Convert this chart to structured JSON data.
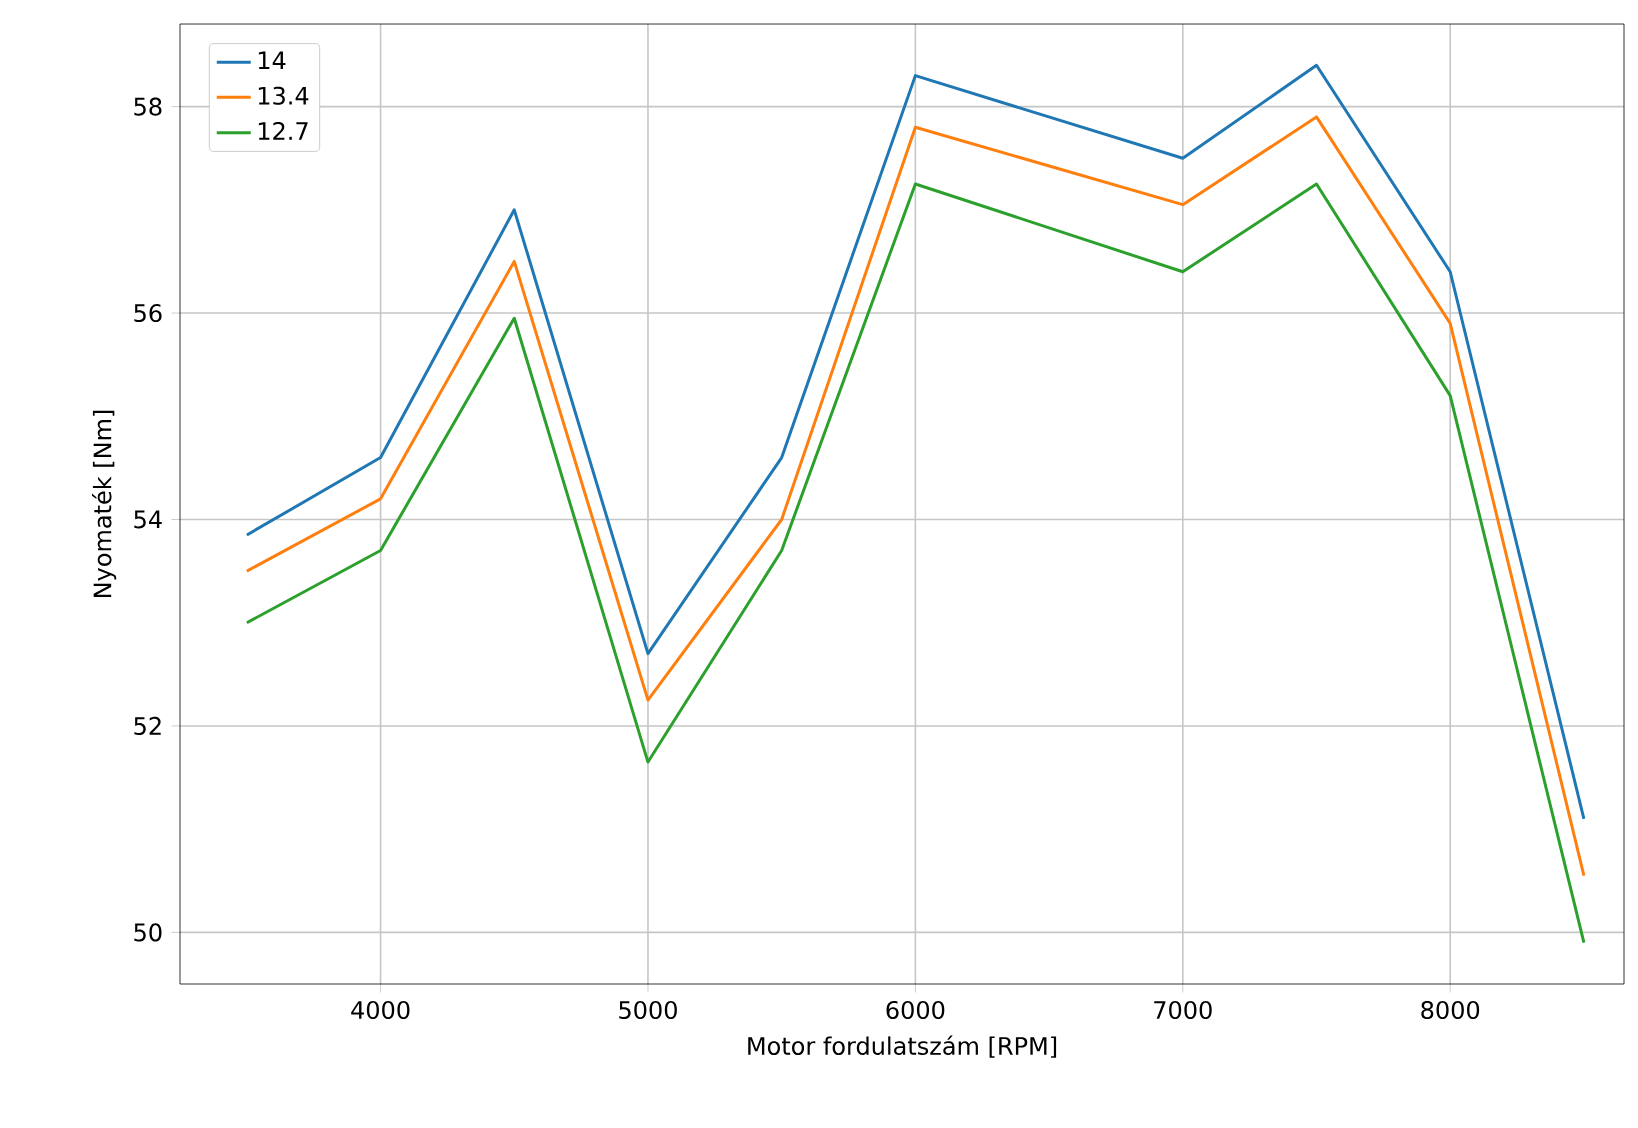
{
  "chart_data": {
    "type": "line",
    "xlabel": "Motor fordulatszám [RPM]",
    "ylabel": "Nyomaték [Nm]",
    "x": [
      3500,
      4000,
      4500,
      5000,
      5500,
      6000,
      7000,
      7500,
      8000,
      8500
    ],
    "series": [
      {
        "name": "14",
        "color": "#1f77b4",
        "values": [
          53.85,
          54.6,
          57.0,
          52.7,
          54.6,
          58.3,
          57.5,
          58.4,
          56.4,
          51.1
        ]
      },
      {
        "name": "13.4",
        "color": "#ff7f0e",
        "values": [
          53.5,
          54.2,
          56.5,
          52.25,
          54.0,
          57.8,
          57.05,
          57.9,
          55.9,
          50.55
        ]
      },
      {
        "name": "12.7",
        "color": "#2ca02c",
        "values": [
          53.0,
          53.7,
          55.95,
          51.65,
          53.7,
          57.25,
          56.4,
          57.25,
          55.2,
          49.9
        ]
      }
    ],
    "xlim": [
      3250,
      8650
    ],
    "ylim": [
      49.5,
      58.8
    ],
    "xticks": [
      4000,
      5000,
      6000,
      7000,
      8000
    ],
    "yticks": [
      50,
      52,
      54,
      56,
      58
    ],
    "grid": true,
    "legend": "top left",
    "marker": "none",
    "line_style": "solid"
  }
}
